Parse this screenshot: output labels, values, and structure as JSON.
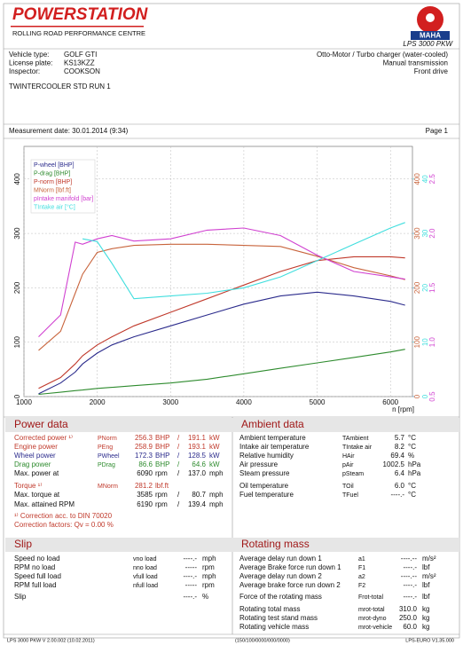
{
  "header": {
    "brand": "POWERSTATION",
    "tagline": "ROLLING ROAD PERFORMANCE CENTRE",
    "maker": "MAHA",
    "product": "LPS 3000 PKW"
  },
  "vehicle": {
    "rows": [
      [
        "Vehicle type:",
        "GOLF GTI"
      ],
      [
        "License plate:",
        "KS13KZZ"
      ],
      [
        "Inspector:",
        "COOKSON"
      ]
    ],
    "right": [
      "Otto-Motor / Turbo charger (water-cooled)",
      "Manual transmission",
      "Front drive"
    ]
  },
  "run_title": "TWINTERCOOLER STD RUN 1",
  "measurement": {
    "date": "Measurement date: 30.01.2014 (9:34)",
    "page": "Page 1"
  },
  "chart_data": {
    "type": "line",
    "xlabel": "n [rpm]",
    "legend": "upper left",
    "grid": true,
    "x": [
      1200,
      1500,
      1700,
      1800,
      2000,
      2200,
      2500,
      3000,
      3500,
      4000,
      4500,
      5000,
      5500,
      6000,
      6200
    ],
    "xlim": [
      1000,
      6300
    ],
    "xticks": [
      1000,
      2000,
      3000,
      4000,
      5000,
      6000
    ],
    "ylim": [
      0,
      460
    ],
    "yticks": [
      0,
      100,
      200,
      300,
      400
    ],
    "y2lim": [
      0,
      460
    ],
    "y2ticks": [
      0,
      100,
      200,
      300,
      400
    ],
    "y3lim": [
      0.5,
      2.8
    ],
    "y3ticks": [
      {
        "value": 0.5,
        "label": "0.5"
      },
      {
        "value": 1,
        "label": "1.0"
      },
      {
        "value": 1.5,
        "label": "1.5"
      },
      {
        "value": 2,
        "label": "2.0"
      },
      {
        "value": 2.5,
        "label": "2.5"
      }
    ],
    "y4lim": [
      0,
      46
    ],
    "y4ticks": [
      0,
      10,
      20,
      30,
      40
    ],
    "series": [
      {
        "name": "P-wheel [BHP]",
        "color": "#2b2b8c",
        "values": [
          5,
          25,
          45,
          60,
          80,
          95,
          110,
          130,
          150,
          170,
          185,
          192,
          185,
          175,
          168
        ]
      },
      {
        "name": "P-drag [BHP]",
        "color": "#2e8b2e",
        "values": [
          4,
          8,
          11,
          12,
          15,
          17,
          20,
          25,
          32,
          42,
          52,
          62,
          72,
          82,
          87
        ]
      },
      {
        "name": "P-norm [BHP]",
        "color": "#c0392b",
        "values": [
          15,
          35,
          60,
          75,
          95,
          110,
          130,
          155,
          180,
          205,
          230,
          250,
          257,
          257,
          255
        ]
      },
      {
        "name": "MNorm [lbf.ft]",
        "color": "#c8643c",
        "axis": "y2",
        "values": [
          85,
          120,
          190,
          225,
          265,
          272,
          278,
          280,
          280,
          278,
          276,
          258,
          237,
          222,
          215
        ]
      },
      {
        "name": "pIntake manifold [bar]",
        "color": "#d040d0",
        "axis": "y3",
        "values": [
          1.05,
          1.25,
          1.92,
          1.9,
          1.95,
          1.98,
          1.93,
          1.95,
          2.03,
          2.05,
          1.98,
          1.8,
          1.65,
          1.6,
          1.58
        ]
      },
      {
        "name": "TIntake air [°C]",
        "color": "#40dede",
        "axis": "y4",
        "values": [
          null,
          null,
          null,
          29,
          28.5,
          24.5,
          18,
          18.5,
          19,
          20,
          22,
          25,
          28,
          31,
          32
        ]
      }
    ]
  },
  "tables": [
    {
      "title": "Power data",
      "rows": [
        {
          "label": "Corrected power ¹⁾",
          "symbol": "PNorm",
          "value": "256.3",
          "unit": "BHP",
          "sep": "/",
          "value2": "191.1",
          "unit2": "kW",
          "color": "#c0392b"
        },
        {
          "label": "Engine power",
          "symbol": "PEng",
          "value": "258.9",
          "unit": "BHP",
          "sep": "/",
          "value2": "193.1",
          "unit2": "kW",
          "color": "#c0392b"
        },
        {
          "label": "Wheel power",
          "symbol": "PWheel",
          "value": "172.3",
          "unit": "BHP",
          "sep": "/",
          "value2": "128.5",
          "unit2": "kW",
          "color": "#2b2b8c"
        },
        {
          "label": "Drag power",
          "symbol": "PDrag",
          "value": "86.6",
          "unit": "BHP",
          "sep": "/",
          "value2": "64.6",
          "unit2": "kW",
          "color": "#2e8b2e"
        },
        {
          "label": "Max. power at",
          "value": "6090",
          "unit": "rpm",
          "sep": "/",
          "value2": "137.0",
          "unit2": "mph"
        },
        {
          "label": "Torque ¹⁾",
          "symbol": "MNorm",
          "value": "281.2",
          "unit": "lbf.ft",
          "color": "#c0392b"
        },
        {
          "label": "Max. torque at",
          "value": "3585",
          "unit": "rpm",
          "sep": "/",
          "value2": "80.7",
          "unit2": "mph"
        },
        {
          "label": "Max. attained RPM",
          "value": "6190",
          "unit": "rpm",
          "sep": "/",
          "value2": "139.4",
          "unit2": "mph"
        },
        {
          "label": "¹⁾ Correction acc. to DIN 70020",
          "color": "#c0392b"
        },
        {
          "label": "Correction factors: Qv =  0.00 %",
          "color": "#c0392b"
        }
      ]
    },
    {
      "title": "Ambient data",
      "rows": [
        {
          "label": "Ambient temperature",
          "symbol": "TAmbient",
          "value": "5.7",
          "unit": "°C"
        },
        {
          "label": "Intake air temperature",
          "symbol": "TIntake air",
          "value": "8.2",
          "unit": "°C"
        },
        {
          "label": "Relative humidity",
          "symbol": "HAir",
          "value": "69.4",
          "unit": "%"
        },
        {
          "label": "Air pressure",
          "symbol": "pAir",
          "value": "1002.5",
          "unit": "hPa"
        },
        {
          "label": "Steam pressure",
          "symbol": "pSteam",
          "value": "6.4",
          "unit": "hPa"
        },
        {
          "label": "Oil temperature",
          "symbol": "TOil",
          "value": "6.0",
          "unit": "°C"
        },
        {
          "label": "Fuel temperature",
          "symbol": "TFuel",
          "value": "----.-",
          "unit": "°C"
        }
      ]
    },
    {
      "title": "Slip",
      "rows": [
        {
          "label": "Speed no load",
          "symbol": "vno load",
          "value": "----.-",
          "unit": "mph"
        },
        {
          "label": "RPM no load",
          "symbol": "nno load",
          "value": "-----",
          "unit": "rpm"
        },
        {
          "label": "Speed full load",
          "symbol": "vfull load",
          "value": "----.-",
          "unit": "mph"
        },
        {
          "label": "RPM full load",
          "symbol": "nfull load",
          "value": "-----",
          "unit": "rpm"
        },
        {
          "label": "Slip",
          "value": "----.-",
          "unit": "%"
        }
      ]
    },
    {
      "title": "Rotating mass",
      "rows": [
        {
          "label": "Average delay run down 1",
          "symbol": "a1",
          "value": "----.--",
          "unit": "m/s²"
        },
        {
          "label": "Average Brake force run down 1",
          "symbol": "F1",
          "value": "----.-",
          "unit": "lbf"
        },
        {
          "label": "Average delay run down 2",
          "symbol": "a2",
          "value": "----.--",
          "unit": "m/s²"
        },
        {
          "label": "Average brake force run down 2",
          "symbol": "F2",
          "value": "----.-",
          "unit": "lbf"
        },
        {
          "label": "Force of the rotating mass",
          "symbol": "Frot-total",
          "value": "----.-",
          "unit": "lbf"
        },
        {
          "label": "Rotating total mass",
          "symbol": "mrot-total",
          "value": "310.0",
          "unit": "kg"
        },
        {
          "label": "Rotating test stand mass",
          "symbol": "mrot-dyno",
          "value": "250.0",
          "unit": "kg"
        },
        {
          "label": "Rotating vehicle mass",
          "symbol": "mrot-vehicle",
          "value": "60.0",
          "unit": "kg"
        }
      ]
    }
  ],
  "footer": [
    "LPS 3000 PKW V 2.00.002 (10.02.2011)",
    "(150/100/0000/000/0000)",
    "LPS-EURO V1.35.000"
  ]
}
